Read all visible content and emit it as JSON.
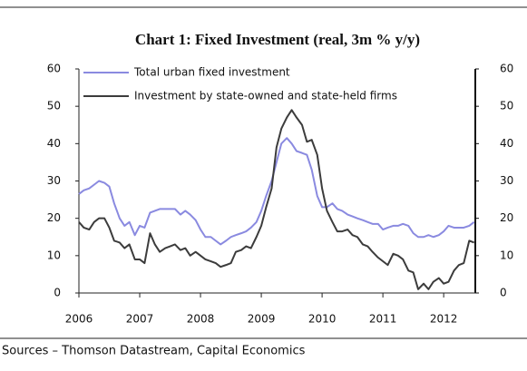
{
  "chart_data": {
    "type": "line",
    "title": "Chart 1: Fixed Investment (real, 3m % y/y)",
    "source": "Sources – Thomson Datastream, Capital Economics",
    "x": [
      2006.0,
      2006.08,
      2006.17,
      2006.25,
      2006.33,
      2006.42,
      2006.5,
      2006.58,
      2006.67,
      2006.75,
      2006.83,
      2006.92,
      2007.0,
      2007.08,
      2007.17,
      2007.25,
      2007.33,
      2007.42,
      2007.5,
      2007.58,
      2007.67,
      2007.75,
      2007.83,
      2007.92,
      2008.0,
      2008.08,
      2008.17,
      2008.25,
      2008.33,
      2008.42,
      2008.5,
      2008.58,
      2008.67,
      2008.75,
      2008.83,
      2008.92,
      2009.0,
      2009.08,
      2009.17,
      2009.25,
      2009.33,
      2009.42,
      2009.5,
      2009.58,
      2009.67,
      2009.75,
      2009.83,
      2009.92,
      2010.0,
      2010.08,
      2010.17,
      2010.25,
      2010.33,
      2010.42,
      2010.5,
      2010.58,
      2010.67,
      2010.75,
      2010.83,
      2010.92,
      2011.0,
      2011.08,
      2011.17,
      2011.25,
      2011.33,
      2011.42,
      2011.5,
      2011.58,
      2011.67,
      2011.75,
      2011.83,
      2011.92,
      2012.0,
      2012.08,
      2012.17,
      2012.25,
      2012.33,
      2012.42,
      2012.5
    ],
    "series": [
      {
        "name": "Total urban fixed investment",
        "color": "#8a8ae0",
        "values": [
          26.5,
          27.5,
          28,
          29,
          30,
          29.5,
          28.5,
          24,
          20,
          18,
          19,
          15.5,
          18,
          17.5,
          21.5,
          22,
          22.5,
          22.5,
          22.5,
          22.5,
          21,
          22,
          21,
          19.5,
          17,
          15,
          15,
          14,
          13,
          14,
          15,
          15.5,
          16,
          16.5,
          17.5,
          19,
          22,
          26,
          30,
          35,
          40,
          41.5,
          40,
          38,
          37.5,
          37,
          33,
          26,
          23,
          23,
          24,
          22.5,
          22,
          21,
          20.5,
          20,
          19.5,
          19,
          18.5,
          18.5,
          17,
          17.5,
          18,
          18,
          18.5,
          18,
          16,
          15,
          15,
          15.5,
          15,
          15.5,
          16.5,
          18,
          17.5,
          17.5,
          17.5,
          18,
          19
        ]
      },
      {
        "name": "Investment by state-owned and state-held firms",
        "color": "#3c3c3c",
        "values": [
          19,
          17.5,
          17,
          19,
          20,
          20,
          17.5,
          14,
          13.5,
          12,
          13,
          9,
          9,
          8,
          16,
          13,
          11,
          12,
          12.5,
          13,
          11.5,
          12,
          10,
          11,
          10,
          9,
          8.5,
          8,
          7,
          7.5,
          8,
          11,
          11.5,
          12.5,
          12,
          15,
          18,
          23,
          28,
          39,
          44,
          47,
          49,
          47,
          45,
          40.5,
          41,
          37,
          28,
          22,
          19,
          16.5,
          16.5,
          17,
          15.5,
          15,
          13,
          12.5,
          11,
          9.5,
          8.5,
          7.5,
          10.5,
          10,
          9,
          6,
          5.5,
          1,
          2.5,
          1,
          3,
          4,
          2.5,
          3,
          6,
          7.5,
          8,
          14,
          13.5
        ]
      }
    ],
    "xlim": [
      2006,
      2012.52
    ],
    "xticks": [
      2006,
      2007,
      2008,
      2009,
      2010,
      2011,
      2012
    ],
    "ylim": [
      0,
      60
    ],
    "yticks": [
      0,
      10,
      20,
      30,
      40,
      50,
      60
    ],
    "y2lim": [
      0,
      60
    ],
    "y2ticks": [
      0,
      10,
      20,
      30,
      40,
      50,
      60
    ],
    "legend": "top-left",
    "grid": false
  }
}
